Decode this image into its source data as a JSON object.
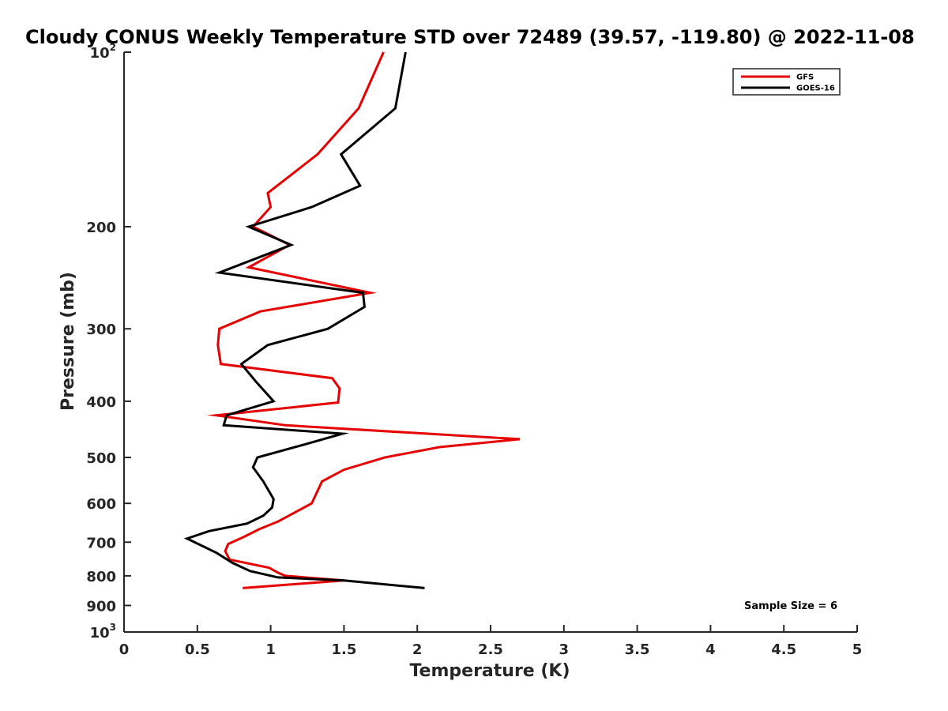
{
  "chart_data": {
    "type": "line",
    "title": "Cloudy CONUS Weekly Temperature STD over 72489 (39.57, -119.80) @ 2022-11-08",
    "xlabel": "Temperature (K)",
    "ylabel": "Pressure (mb)",
    "xlim": [
      0,
      5
    ],
    "ylim": [
      100,
      1000
    ],
    "y_scale": "log",
    "y_direction": "reversed",
    "x_ticks": [
      "0",
      "0.5",
      "1",
      "1.5",
      "2",
      "2.5",
      "3",
      "3.5",
      "4",
      "4.5",
      "5"
    ],
    "x_tick_values": [
      0,
      0.5,
      1,
      1.5,
      2,
      2.5,
      3,
      3.5,
      4,
      4.5,
      5
    ],
    "y_ticks": [
      {
        "value": 100,
        "base": "10",
        "exp": "2"
      },
      {
        "value": 200,
        "label": "200"
      },
      {
        "value": 300,
        "label": "300"
      },
      {
        "value": 400,
        "label": "400"
      },
      {
        "value": 500,
        "label": "500"
      },
      {
        "value": 600,
        "label": "600"
      },
      {
        "value": 700,
        "label": "700"
      },
      {
        "value": 800,
        "label": "800"
      },
      {
        "value": 900,
        "label": "900"
      },
      {
        "value": 1000,
        "base": "10",
        "exp": "3"
      }
    ],
    "grid": false,
    "legend_position": "top-right",
    "annotation": "Sample Size = 6",
    "series": [
      {
        "name": "GFS",
        "color": "#e60000",
        "points": [
          [
            1.77,
            100
          ],
          [
            1.6,
            125
          ],
          [
            1.32,
            150
          ],
          [
            0.98,
            175
          ],
          [
            1.0,
            185
          ],
          [
            0.88,
            200
          ],
          [
            1.13,
            215
          ],
          [
            0.85,
            235
          ],
          [
            1.68,
            260
          ],
          [
            0.93,
            280
          ],
          [
            0.65,
            300
          ],
          [
            0.64,
            320
          ],
          [
            0.66,
            345
          ],
          [
            1.42,
            365
          ],
          [
            1.47,
            380
          ],
          [
            1.46,
            402
          ],
          [
            0.63,
            423
          ],
          [
            1.1,
            440
          ],
          [
            2.7,
            465
          ],
          [
            2.15,
            480
          ],
          [
            1.78,
            500
          ],
          [
            1.5,
            525
          ],
          [
            1.35,
            550
          ],
          [
            1.28,
            600
          ],
          [
            1.15,
            625
          ],
          [
            1.05,
            645
          ],
          [
            0.92,
            665
          ],
          [
            0.82,
            685
          ],
          [
            0.71,
            705
          ],
          [
            0.69,
            725
          ],
          [
            0.72,
            750
          ],
          [
            0.99,
            775
          ],
          [
            1.05,
            790
          ],
          [
            1.1,
            800
          ],
          [
            1.5,
            815
          ],
          [
            0.81,
            840
          ]
        ]
      },
      {
        "name": "GOES-16",
        "color": "#000000",
        "points": [
          [
            1.92,
            100
          ],
          [
            1.85,
            125
          ],
          [
            1.48,
            150
          ],
          [
            1.61,
            170
          ],
          [
            1.28,
            185
          ],
          [
            0.85,
            200
          ],
          [
            1.14,
            215
          ],
          [
            0.65,
            240
          ],
          [
            1.63,
            260
          ],
          [
            1.64,
            275
          ],
          [
            1.39,
            300
          ],
          [
            0.98,
            320
          ],
          [
            0.8,
            345
          ],
          [
            0.9,
            370
          ],
          [
            1.02,
            400
          ],
          [
            0.7,
            423
          ],
          [
            0.68,
            440
          ],
          [
            1.49,
            455
          ],
          [
            1.23,
            475
          ],
          [
            0.91,
            500
          ],
          [
            0.88,
            520
          ],
          [
            0.95,
            550
          ],
          [
            1.02,
            590
          ],
          [
            1.01,
            610
          ],
          [
            0.95,
            630
          ],
          [
            0.84,
            650
          ],
          [
            0.58,
            670
          ],
          [
            0.43,
            690
          ],
          [
            0.63,
            730
          ],
          [
            0.74,
            760
          ],
          [
            0.86,
            785
          ],
          [
            1.05,
            805
          ],
          [
            1.5,
            815
          ],
          [
            2.05,
            840
          ]
        ]
      }
    ]
  }
}
